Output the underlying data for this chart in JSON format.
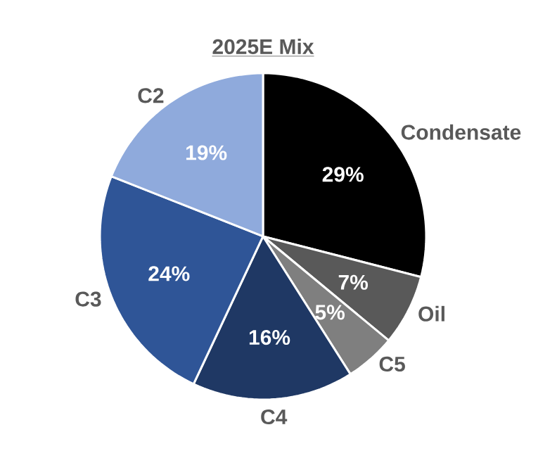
{
  "chart_data": {
    "type": "pie",
    "title": "2025E Mix",
    "categories": [
      "Condensate",
      "Oil",
      "C5",
      "C4",
      "C3",
      "C2"
    ],
    "values": [
      29,
      7,
      5,
      16,
      24,
      19
    ],
    "value_labels": [
      "29%",
      "7%",
      "5%",
      "16%",
      "24%",
      "19%"
    ],
    "colors": [
      "#000000",
      "#595959",
      "#7f7f7f",
      "#1f3864",
      "#2f5597",
      "#8faadc"
    ]
  }
}
